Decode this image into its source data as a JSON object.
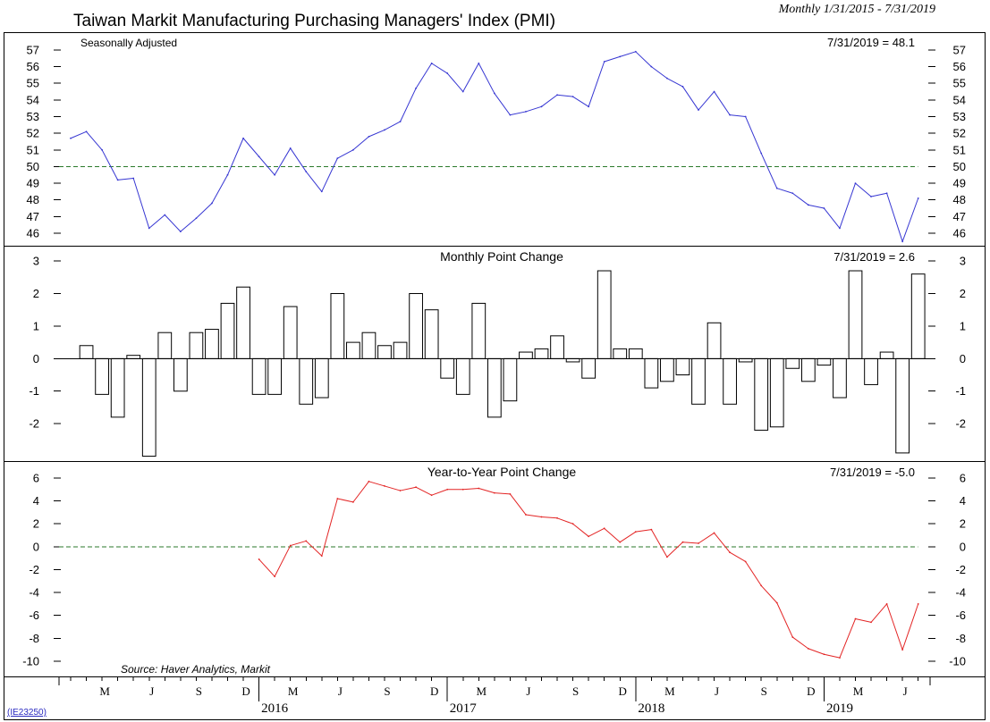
{
  "title": "Taiwan Markit Manufacturing Purchasing Managers' Index (PMI)",
  "date_range": "Monthly 1/31/2015 - 7/31/2019",
  "source": "Source: Haver Analytics, Markit",
  "chart_code": "(IE23250)",
  "colors": {
    "reference_line": "#2b7a2b",
    "bar_fill": "#ffffff",
    "bar_stroke": "#000000",
    "axis": "#000000",
    "text": "#000000",
    "link": "#2a2ac0"
  },
  "chart_data": [
    {
      "type": "line",
      "note": "Seasonally Adjusted",
      "last_value_label": "7/31/2019 = 48.1",
      "color": "#3636d2",
      "start": {
        "year": 2015,
        "month": 1
      },
      "values": [
        51.7,
        52.1,
        51.0,
        49.2,
        49.3,
        46.3,
        47.1,
        46.1,
        46.9,
        47.8,
        49.5,
        51.7,
        50.6,
        49.5,
        51.1,
        49.7,
        48.5,
        50.5,
        51.0,
        51.8,
        52.2,
        52.7,
        54.7,
        56.2,
        55.6,
        54.5,
        56.2,
        54.4,
        53.1,
        53.3,
        53.6,
        54.3,
        54.2,
        53.6,
        56.3,
        56.6,
        56.9,
        56.0,
        55.3,
        54.8,
        53.4,
        54.5,
        53.1,
        53.0,
        50.8,
        48.7,
        48.4,
        47.7,
        47.5,
        46.3,
        49.0,
        48.2,
        48.4,
        45.5,
        48.1
      ],
      "yticks": [
        46,
        47,
        48,
        49,
        50,
        51,
        52,
        53,
        54,
        55,
        56,
        57
      ],
      "ylim": [
        45.25,
        58.07
      ],
      "reference_line": 50
    },
    {
      "type": "bar",
      "title": "Monthly Point Change",
      "last_value_label": "7/31/2019 = 2.6",
      "color": "#000000",
      "start": {
        "year": 2015,
        "month": 2
      },
      "values": [
        0.4,
        -1.1,
        -1.8,
        0.1,
        -3.0,
        0.8,
        -1.0,
        0.8,
        0.9,
        1.7,
        2.2,
        -1.1,
        -1.1,
        1.6,
        -1.4,
        -1.2,
        2.0,
        0.5,
        0.8,
        0.4,
        0.5,
        2.0,
        1.5,
        -0.6,
        -1.1,
        1.7,
        -1.8,
        -1.3,
        0.2,
        0.3,
        0.7,
        -0.1,
        -0.6,
        2.7,
        0.3,
        0.3,
        -0.9,
        -0.7,
        -0.5,
        -1.4,
        1.1,
        -1.4,
        -0.1,
        -2.2,
        -2.1,
        -0.3,
        -0.7,
        -0.2,
        -1.2,
        2.7,
        -0.8,
        0.2,
        -2.9,
        2.6
      ],
      "yticks": [
        -2,
        -1,
        0,
        1,
        2,
        3
      ],
      "ylim": [
        -3.15,
        3.47
      ],
      "baseline": 0
    },
    {
      "type": "line",
      "title": "Year-to-Year Point Change",
      "last_value_label": "7/31/2019 = -5.0",
      "color": "#e32424",
      "start": {
        "year": 2016,
        "month": 1
      },
      "values": [
        -1.1,
        -2.6,
        0.1,
        0.5,
        -0.8,
        4.2,
        3.9,
        5.7,
        5.3,
        4.9,
        5.2,
        4.5,
        5.0,
        5.0,
        5.1,
        4.7,
        4.6,
        2.8,
        2.6,
        2.5,
        2.0,
        0.9,
        1.6,
        0.4,
        1.3,
        1.5,
        -0.9,
        0.4,
        0.3,
        1.2,
        -0.5,
        -1.3,
        -3.4,
        -4.9,
        -7.9,
        -8.9,
        -9.4,
        -9.7,
        -6.3,
        -6.6,
        -5.0,
        -9.0,
        -5.0
      ],
      "yticks": [
        -10,
        -8,
        -6,
        -4,
        -2,
        0,
        2,
        4,
        6
      ],
      "ylim": [
        -11.33,
        7.48
      ],
      "reference_line": 0
    }
  ],
  "x_axis": {
    "start": {
      "year": 2015,
      "month": 1
    },
    "end": {
      "year": 2019,
      "month": 7
    },
    "month_labels": [
      {
        "month": 3,
        "label": "M"
      },
      {
        "month": 6,
        "label": "J"
      },
      {
        "month": 9,
        "label": "S"
      },
      {
        "month": 12,
        "label": "D"
      }
    ],
    "year_labels": [
      "2016",
      "2017",
      "2018",
      "2019"
    ]
  }
}
